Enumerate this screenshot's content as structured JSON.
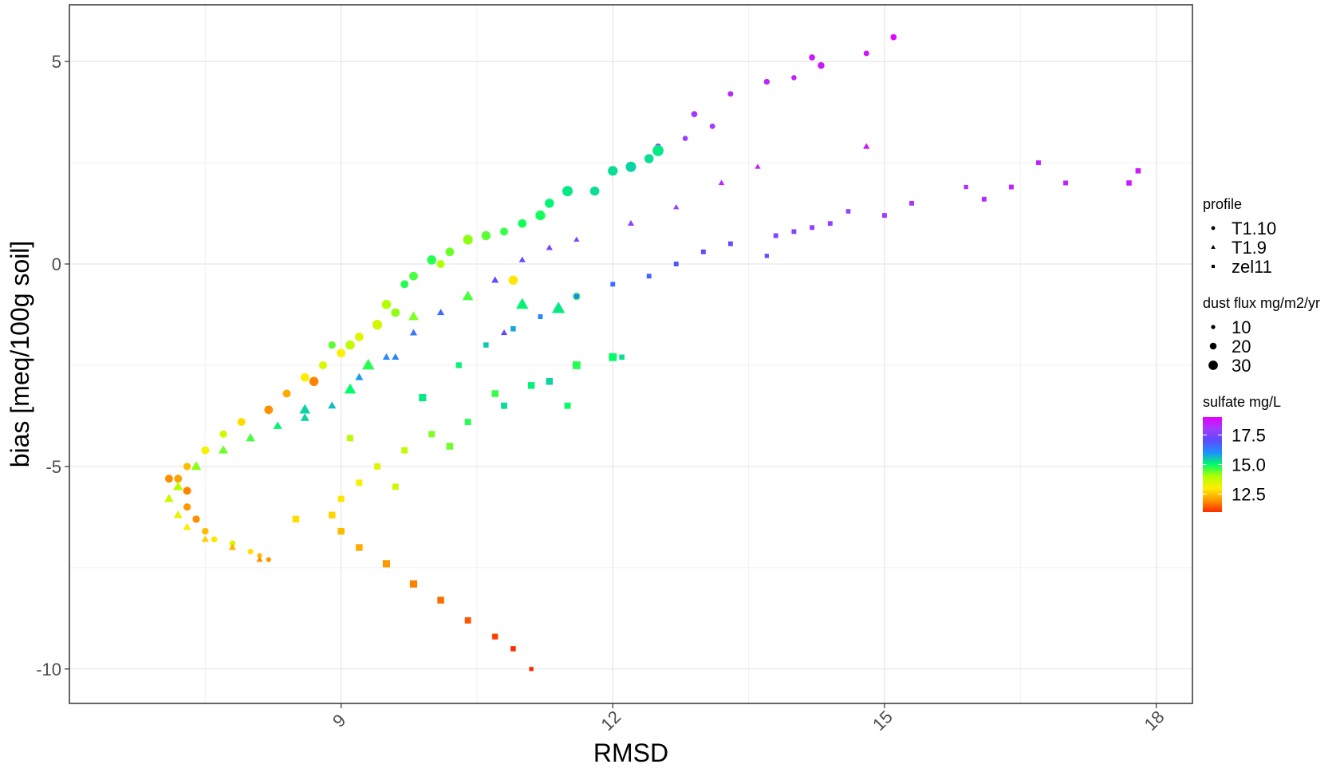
{
  "chart_data": {
    "type": "scatter",
    "title": "",
    "xlabel": "RMSD",
    "ylabel": "bias [meq/100g soil]",
    "xlim": [
      6.0,
      18.4
    ],
    "ylim": [
      -10.85,
      6.4
    ],
    "x_ticks": [
      9,
      12,
      15,
      18
    ],
    "x_tick_labels": [
      "9",
      "12",
      "15",
      "18"
    ],
    "y_ticks": [
      5,
      0,
      -5,
      -10
    ],
    "y_tick_labels": [
      "5",
      "0",
      "-5",
      "-10"
    ],
    "grid": true,
    "legend_position": "right",
    "legends": {
      "shape": {
        "title": "profile",
        "items": [
          {
            "label": "T1.10",
            "shape": "circle"
          },
          {
            "label": "T1.9",
            "shape": "triangle"
          },
          {
            "label": "zel11",
            "shape": "square"
          }
        ]
      },
      "size": {
        "title": "dust flux mg/m2/yr",
        "items": [
          {
            "label": "10",
            "value": 10
          },
          {
            "label": "20",
            "value": 20
          },
          {
            "label": "30",
            "value": 30
          }
        ]
      },
      "color": {
        "title": "sulfate mg/L",
        "min": 11.0,
        "max": 19.0,
        "ticks": [
          17.5,
          15.0,
          12.5
        ],
        "tick_labels": [
          "17.5",
          "15.0",
          "12.5"
        ],
        "gradient": [
          "#ff2a00",
          "#ff9900",
          "#ffee00",
          "#b2ff00",
          "#00ff66",
          "#1e90ff",
          "#5a4dff",
          "#a03cff",
          "#e600ff"
        ]
      }
    },
    "series": [
      {
        "name": "T1.10",
        "shape": "circle",
        "points": [
          [
            15.1,
            5.6,
            18.9,
            14
          ],
          [
            14.8,
            5.2,
            18.7,
            12
          ],
          [
            14.3,
            4.9,
            18.6,
            16
          ],
          [
            14.2,
            5.1,
            18.6,
            14
          ],
          [
            14.0,
            4.6,
            18.5,
            11
          ],
          [
            13.7,
            4.5,
            18.4,
            13
          ],
          [
            13.3,
            4.2,
            18.3,
            12
          ],
          [
            12.9,
            3.7,
            18.1,
            14
          ],
          [
            13.1,
            3.4,
            18.0,
            12
          ],
          [
            12.8,
            3.1,
            17.9,
            11
          ],
          [
            12.5,
            2.9,
            17.8,
            14
          ],
          [
            12.5,
            2.8,
            15.2,
            30
          ],
          [
            12.4,
            2.6,
            15.3,
            24
          ],
          [
            12.2,
            2.4,
            15.4,
            28
          ],
          [
            12.0,
            2.3,
            15.3,
            26
          ],
          [
            11.8,
            1.8,
            15.3,
            24
          ],
          [
            11.5,
            1.8,
            15.2,
            28
          ],
          [
            11.3,
            1.5,
            15.1,
            24
          ],
          [
            11.2,
            1.2,
            14.9,
            26
          ],
          [
            11.0,
            1.0,
            14.9,
            22
          ],
          [
            10.8,
            0.8,
            14.7,
            20
          ],
          [
            10.6,
            0.7,
            14.5,
            24
          ],
          [
            10.4,
            0.6,
            14.2,
            26
          ],
          [
            10.2,
            0.3,
            14.4,
            22
          ],
          [
            10.0,
            0.1,
            14.8,
            24
          ],
          [
            9.8,
            -0.3,
            14.6,
            22
          ],
          [
            9.7,
            -0.5,
            14.8,
            20
          ],
          [
            9.5,
            -1.0,
            14.0,
            24
          ],
          [
            9.4,
            -1.5,
            13.6,
            26
          ],
          [
            9.2,
            -1.8,
            13.4,
            22
          ],
          [
            9.1,
            -2.0,
            13.8,
            24
          ],
          [
            9.0,
            -2.2,
            13.0,
            22
          ],
          [
            8.8,
            -2.5,
            13.5,
            20
          ],
          [
            8.6,
            -2.8,
            13.0,
            22
          ],
          [
            8.4,
            -3.2,
            12.2,
            20
          ],
          [
            8.2,
            -3.6,
            11.9,
            22
          ],
          [
            7.9,
            -3.9,
            12.8,
            20
          ],
          [
            7.7,
            -4.2,
            13.6,
            18
          ],
          [
            7.5,
            -4.6,
            13.1,
            20
          ],
          [
            7.3,
            -5.0,
            12.4,
            18
          ],
          [
            7.2,
            -5.3,
            12.1,
            20
          ],
          [
            7.3,
            -5.6,
            11.8,
            20
          ],
          [
            7.3,
            -6.0,
            12.0,
            18
          ],
          [
            7.4,
            -6.3,
            11.9,
            18
          ],
          [
            7.5,
            -6.6,
            12.4,
            16
          ],
          [
            7.6,
            -6.8,
            12.9,
            14
          ],
          [
            7.8,
            -6.9,
            13.5,
            14
          ],
          [
            8.0,
            -7.1,
            12.8,
            12
          ],
          [
            8.1,
            -7.2,
            12.4,
            10
          ],
          [
            8.2,
            -7.3,
            12.0,
            10
          ],
          [
            7.1,
            -5.3,
            11.9,
            20
          ],
          [
            8.7,
            -2.9,
            11.8,
            24
          ],
          [
            10.9,
            -0.4,
            12.9,
            24
          ],
          [
            9.6,
            -1.2,
            14.2,
            22
          ],
          [
            10.1,
            0.0,
            14.0,
            20
          ],
          [
            8.9,
            -2.0,
            14.5,
            18
          ],
          [
            11.6,
            -0.8,
            14.9,
            18
          ]
        ]
      },
      {
        "name": "T1.9",
        "shape": "triangle",
        "points": [
          [
            14.8,
            2.9,
            18.6,
            12
          ],
          [
            13.6,
            2.4,
            18.5,
            10
          ],
          [
            13.2,
            2.0,
            18.3,
            11
          ],
          [
            12.7,
            1.4,
            18.0,
            10
          ],
          [
            12.2,
            1.0,
            17.8,
            12
          ],
          [
            11.6,
            0.6,
            17.6,
            10
          ],
          [
            11.3,
            0.4,
            17.4,
            12
          ],
          [
            11.0,
            0.1,
            17.2,
            12
          ],
          [
            10.7,
            -0.4,
            17.0,
            14
          ],
          [
            10.4,
            -0.8,
            16.8,
            12
          ],
          [
            10.1,
            -1.2,
            16.6,
            14
          ],
          [
            9.8,
            -1.7,
            16.4,
            14
          ],
          [
            9.5,
            -2.3,
            16.1,
            14
          ],
          [
            9.2,
            -2.8,
            15.9,
            16
          ],
          [
            8.9,
            -3.5,
            15.6,
            16
          ],
          [
            8.6,
            -3.8,
            15.4,
            18
          ],
          [
            8.3,
            -4.0,
            15.1,
            18
          ],
          [
            8.0,
            -4.3,
            14.6,
            20
          ],
          [
            7.7,
            -4.6,
            14.4,
            20
          ],
          [
            7.4,
            -5.0,
            14.2,
            22
          ],
          [
            7.2,
            -5.5,
            13.9,
            22
          ],
          [
            7.1,
            -5.8,
            13.6,
            20
          ],
          [
            7.2,
            -6.2,
            13.3,
            18
          ],
          [
            7.3,
            -6.5,
            13.0,
            16
          ],
          [
            7.5,
            -6.8,
            12.6,
            14
          ],
          [
            7.8,
            -7.0,
            12.3,
            14
          ],
          [
            8.1,
            -7.3,
            11.9,
            12
          ],
          [
            11.4,
            -1.1,
            15.2,
            30
          ],
          [
            11.0,
            -1.0,
            15.1,
            28
          ],
          [
            10.4,
            -0.8,
            14.6,
            24
          ],
          [
            9.8,
            -1.3,
            14.3,
            22
          ],
          [
            9.3,
            -2.5,
            14.8,
            28
          ],
          [
            9.1,
            -3.1,
            15.0,
            26
          ],
          [
            8.6,
            -3.6,
            15.4,
            24
          ],
          [
            9.6,
            -2.3,
            16.2,
            14
          ],
          [
            10.8,
            -1.7,
            17.0,
            12
          ]
        ]
      },
      {
        "name": "zel11",
        "shape": "square",
        "points": [
          [
            17.8,
            2.3,
            18.6,
            14
          ],
          [
            17.7,
            2.0,
            18.6,
            14
          ],
          [
            17.0,
            2.0,
            18.5,
            12
          ],
          [
            16.7,
            2.5,
            18.5,
            12
          ],
          [
            16.4,
            1.9,
            18.4,
            12
          ],
          [
            16.1,
            1.6,
            18.3,
            12
          ],
          [
            15.9,
            1.9,
            18.3,
            10
          ],
          [
            15.3,
            1.5,
            18.1,
            12
          ],
          [
            15.0,
            1.2,
            18.0,
            12
          ],
          [
            14.6,
            1.3,
            17.9,
            11
          ],
          [
            14.4,
            1.0,
            17.8,
            12
          ],
          [
            14.2,
            0.9,
            17.7,
            12
          ],
          [
            14.0,
            0.8,
            17.6,
            12
          ],
          [
            13.8,
            0.7,
            17.5,
            12
          ],
          [
            13.7,
            0.2,
            17.3,
            10
          ],
          [
            13.3,
            0.5,
            17.2,
            12
          ],
          [
            13.0,
            0.3,
            17.1,
            12
          ],
          [
            12.7,
            0.0,
            16.9,
            12
          ],
          [
            12.4,
            -0.3,
            16.7,
            12
          ],
          [
            12.0,
            -0.5,
            16.5,
            12
          ],
          [
            11.6,
            -0.8,
            16.3,
            12
          ],
          [
            11.2,
            -1.3,
            16.1,
            12
          ],
          [
            10.9,
            -1.6,
            15.8,
            14
          ],
          [
            10.6,
            -2.0,
            15.5,
            14
          ],
          [
            10.3,
            -2.5,
            15.1,
            16
          ],
          [
            12.0,
            -2.3,
            15.0,
            24
          ],
          [
            11.6,
            -2.5,
            14.8,
            24
          ],
          [
            11.1,
            -3.0,
            15.1,
            20
          ],
          [
            10.8,
            -3.5,
            15.3,
            18
          ],
          [
            10.4,
            -3.9,
            14.8,
            18
          ],
          [
            10.0,
            -4.2,
            14.3,
            18
          ],
          [
            9.7,
            -4.6,
            13.8,
            18
          ],
          [
            9.4,
            -5.0,
            13.4,
            18
          ],
          [
            9.2,
            -5.4,
            13.1,
            18
          ],
          [
            9.0,
            -5.8,
            12.9,
            18
          ],
          [
            8.9,
            -6.2,
            12.7,
            20
          ],
          [
            9.0,
            -6.6,
            12.4,
            20
          ],
          [
            9.2,
            -7.0,
            12.2,
            20
          ],
          [
            9.5,
            -7.4,
            12.0,
            22
          ],
          [
            9.8,
            -7.9,
            11.8,
            22
          ],
          [
            10.1,
            -8.3,
            11.6,
            20
          ],
          [
            10.4,
            -8.8,
            11.4,
            18
          ],
          [
            10.7,
            -9.2,
            11.2,
            16
          ],
          [
            10.9,
            -9.5,
            11.0,
            14
          ],
          [
            11.1,
            -10.0,
            11.0,
            10
          ],
          [
            8.5,
            -6.3,
            12.8,
            20
          ],
          [
            9.1,
            -4.3,
            13.9,
            18
          ],
          [
            9.9,
            -3.3,
            15.2,
            22
          ],
          [
            10.7,
            -3.2,
            14.7,
            20
          ],
          [
            11.3,
            -2.9,
            15.4,
            20
          ],
          [
            10.2,
            -4.5,
            14.4,
            20
          ],
          [
            9.6,
            -5.5,
            13.7,
            18
          ],
          [
            11.5,
            -3.5,
            15.0,
            18
          ],
          [
            12.1,
            -2.3,
            15.3,
            14
          ]
        ]
      }
    ]
  }
}
